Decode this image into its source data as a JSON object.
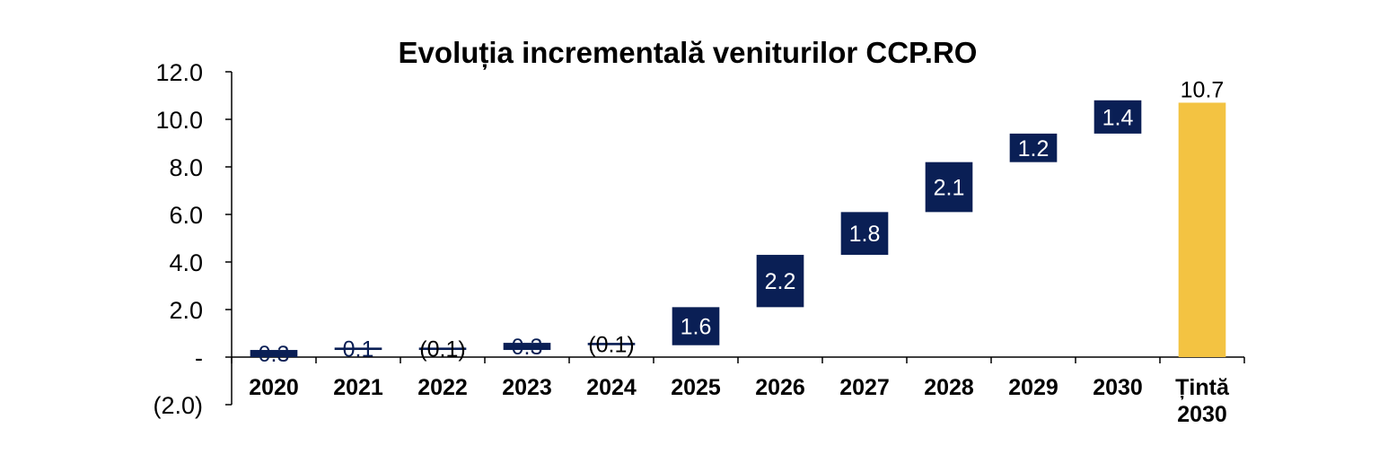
{
  "chart_data": {
    "type": "bar",
    "subtype": "waterfall",
    "title": "Evoluția incrementală veniturilor CCP.RO",
    "xlabel": "",
    "ylabel": "",
    "categories": [
      "2020",
      "2021",
      "2022",
      "2023",
      "2024",
      "2025",
      "2026",
      "2027",
      "2028",
      "2029",
      "2030",
      "Țintă 2030"
    ],
    "values": [
      0.3,
      0.1,
      -0.1,
      0.3,
      -0.1,
      1.6,
      2.2,
      1.8,
      2.1,
      1.2,
      1.4,
      10.7
    ],
    "data_labels": [
      "0.3",
      "0.1",
      "(0.1)",
      "0.3",
      "(0.1)",
      "1.6",
      "2.2",
      "1.8",
      "2.1",
      "1.2",
      "1.4",
      "10.7"
    ],
    "total_index": 11,
    "ylim": [
      -2.0,
      12.0
    ],
    "yticks": [
      -2,
      0,
      2,
      4,
      6,
      8,
      10,
      12
    ],
    "ytick_labels": [
      "(2.0)",
      "-",
      "2.0",
      "4.0",
      "6.0",
      "8.0",
      "10.0",
      "12.0"
    ],
    "grid": false,
    "legend": "none",
    "colors": {
      "increment": "#0a1f55",
      "total": "#f3c342",
      "label_on_bar": "#ffffff",
      "label_off_bar": "#000000"
    }
  }
}
